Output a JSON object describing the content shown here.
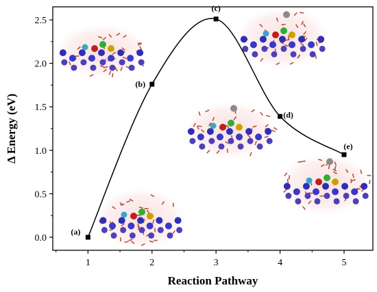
{
  "chart_data": {
    "type": "line",
    "xlabel": "Reaction Pathway",
    "ylabel": "Δ Energy (eV)",
    "xlim": [
      0.45,
      5.45
    ],
    "ylim": [
      -0.15,
      2.65
    ],
    "x_ticks": [
      1,
      2,
      3,
      4,
      5
    ],
    "y_ticks": [
      0.0,
      0.5,
      1.0,
      1.5,
      2.0,
      2.5
    ],
    "x_tick_labels": [
      "1",
      "2",
      "3",
      "4",
      "5"
    ],
    "y_tick_labels": [
      "0.0",
      "0.5",
      "1.0",
      "1.5",
      "2.0",
      "2.5"
    ],
    "grid": false,
    "legend": "none",
    "series": [
      {
        "x": [
          1,
          2,
          3,
          4,
          5
        ],
        "values": [
          0.0,
          1.76,
          2.51,
          1.39,
          0.95
        ],
        "point_labels": [
          "(a)",
          "(b)",
          "(c)",
          "(d)",
          "(e)"
        ],
        "color": "#000000",
        "marker": "square",
        "curve": "smooth"
      }
    ],
    "insets": [
      "molecular-structure-a",
      "molecular-structure-b",
      "molecular-structure-c",
      "molecular-structure-d",
      "molecular-structure-e"
    ]
  }
}
